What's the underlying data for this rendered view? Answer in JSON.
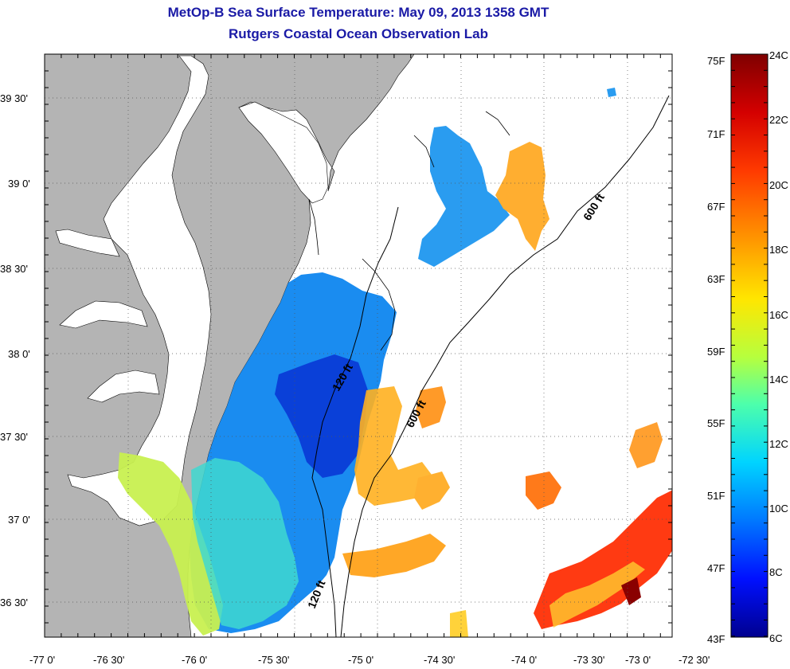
{
  "header": {
    "title": "MetOp-B Sea Surface Temperature:  May 09, 2013 1358 GMT",
    "subtitle": "Rutgers Coastal Ocean Observation Lab"
  },
  "map": {
    "lon_ticks": [
      "-77 0'",
      "-76 30'",
      "-76 0'",
      "-75 30'",
      "-75 0'",
      "-74 30'",
      "-74 0'",
      "-73 30'",
      "-73 0'",
      "-72 30'"
    ],
    "lat_ticks": [
      "39 30'",
      "39 0'",
      "38 30'",
      "38 0'",
      "37 30'",
      "37 0'",
      "36 30'"
    ],
    "contour_labels": [
      "600 ft",
      "120 ft",
      "600 ft",
      "120 ft"
    ],
    "land_color": "#b4b4b4",
    "coast_color": "#000000"
  },
  "colorbar": {
    "fahrenheit_labels": [
      "75F",
      "71F",
      "67F",
      "63F",
      "59F",
      "55F",
      "51F",
      "47F",
      "43F"
    ],
    "celsius_labels": [
      "24C",
      "22C",
      "20C",
      "18C",
      "16C",
      "14C",
      "12C",
      "10C",
      "8C",
      "6C"
    ],
    "colors": [
      "#7f0000",
      "#d40000",
      "#ff3a00",
      "#ff9800",
      "#ffe600",
      "#b6ff3e",
      "#4dffab",
      "#00d4ff",
      "#0078ff",
      "#0010ff",
      "#00008f"
    ]
  }
}
